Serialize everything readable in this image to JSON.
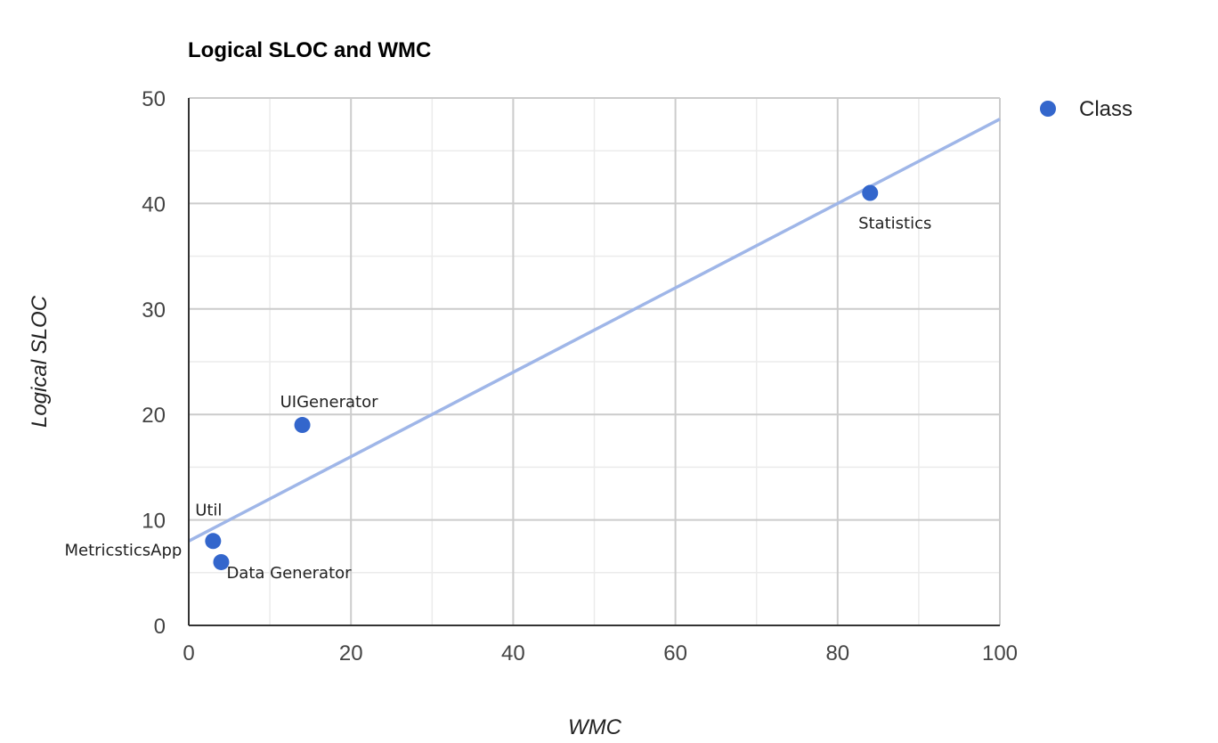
{
  "chart_data": {
    "type": "scatter",
    "title": "Logical SLOC and WMC",
    "xlabel": "WMC",
    "ylabel": "Logical SLOC",
    "xlim": [
      0,
      100
    ],
    "ylim": [
      0,
      50
    ],
    "x_ticks": [
      0,
      20,
      40,
      60,
      80,
      100
    ],
    "y_ticks": [
      0,
      10,
      20,
      30,
      40,
      50
    ],
    "grid": true,
    "legend_position": "top-right",
    "series": [
      {
        "name": "Class",
        "color": "#3366cc",
        "points": [
          {
            "label": "Util",
            "x": 3,
            "y": 8
          },
          {
            "label": "MetricsticsApp",
            "x": 3,
            "y": 8
          },
          {
            "label": "Data Generator",
            "x": 4,
            "y": 6
          },
          {
            "label": "UIGenerator",
            "x": 14,
            "y": 19
          },
          {
            "label": "Statistics",
            "x": 84,
            "y": 41
          }
        ]
      }
    ],
    "trendline": {
      "type": "linear",
      "color": "#9fb6e8",
      "x": [
        0,
        100
      ],
      "y": [
        8,
        48
      ]
    }
  }
}
